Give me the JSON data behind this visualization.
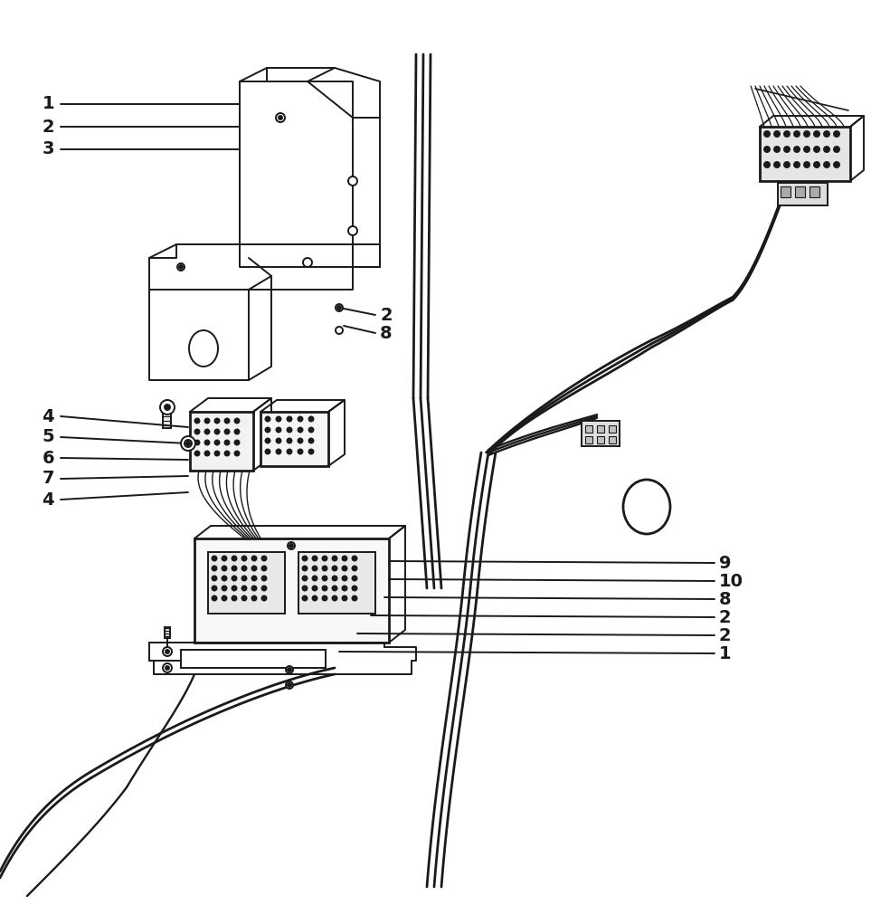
{
  "bg": "#ffffff",
  "lc": "#1a1a1a",
  "figsize": [
    9.84,
    10.0
  ],
  "dpi": 100,
  "lw": 1.4,
  "lw_thick": 2.0,
  "fs": 14
}
